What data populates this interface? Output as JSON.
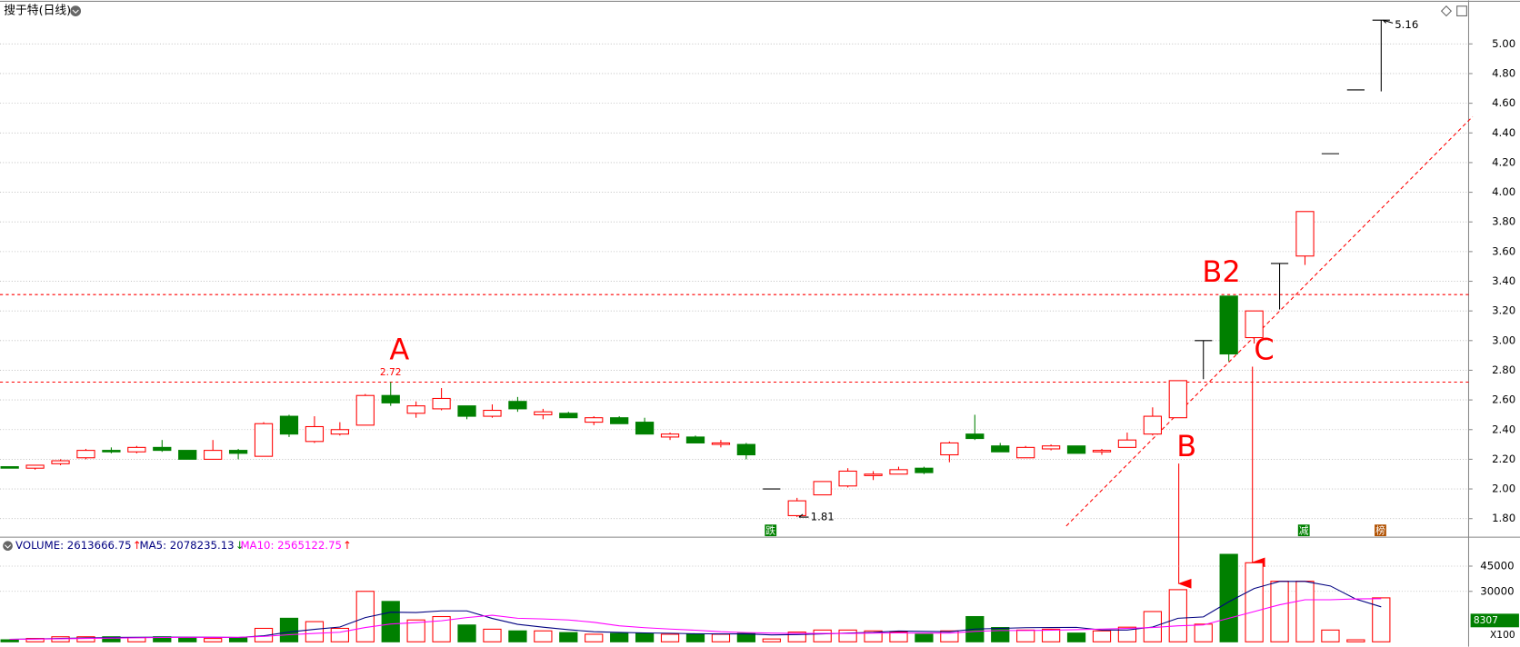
{
  "chart_data": [
    {
      "type": "candlestick",
      "title": "搜于特(日线)",
      "open": [
        2.15,
        2.14,
        2.17,
        2.21,
        2.26,
        2.25,
        2.28,
        2.26,
        2.2,
        2.26,
        2.22,
        2.49,
        2.32,
        2.37,
        2.43,
        2.63,
        2.51,
        2.54,
        2.56,
        2.49,
        2.59,
        2.5,
        2.51,
        2.45,
        2.48,
        2.45,
        2.35,
        2.35,
        2.3,
        2.3,
        2.0,
        1.82,
        1.96,
        2.02,
        2.09,
        2.1,
        2.14,
        2.23,
        2.37,
        2.29,
        2.21,
        2.27,
        2.29,
        2.25,
        2.28,
        2.37,
        2.48,
        3.0,
        3.3,
        3.02,
        3.52,
        3.57,
        4.26,
        4.69,
        5.16
      ],
      "high": [
        2.15,
        2.16,
        2.2,
        2.27,
        2.28,
        2.29,
        2.33,
        2.26,
        2.33,
        2.27,
        2.45,
        2.5,
        2.49,
        2.45,
        2.64,
        2.72,
        2.59,
        2.68,
        2.56,
        2.57,
        2.62,
        2.54,
        2.52,
        2.49,
        2.49,
        2.48,
        2.38,
        2.36,
        2.33,
        2.31,
        2.0,
        1.94,
        2.05,
        2.14,
        2.12,
        2.15,
        2.15,
        2.32,
        2.5,
        2.31,
        2.29,
        2.3,
        2.29,
        2.27,
        2.38,
        2.55,
        2.73,
        3.0,
        3.3,
        3.2,
        3.52,
        3.87,
        4.26,
        4.69,
        5.16
      ],
      "low": [
        2.14,
        2.13,
        2.16,
        2.2,
        2.24,
        2.24,
        2.25,
        2.2,
        2.2,
        2.2,
        2.22,
        2.35,
        2.31,
        2.36,
        2.43,
        2.56,
        2.48,
        2.53,
        2.47,
        2.48,
        2.52,
        2.47,
        2.48,
        2.43,
        2.44,
        2.37,
        2.33,
        2.31,
        2.28,
        2.2,
        2.0,
        1.81,
        1.96,
        2.01,
        2.06,
        2.1,
        2.1,
        2.18,
        2.33,
        2.25,
        2.21,
        2.26,
        2.24,
        2.23,
        2.28,
        2.36,
        2.48,
        2.74,
        2.86,
        2.98,
        3.21,
        3.51,
        4.26,
        4.69,
        4.68
      ],
      "close": [
        2.14,
        2.16,
        2.19,
        2.26,
        2.25,
        2.28,
        2.26,
        2.2,
        2.26,
        2.24,
        2.44,
        2.37,
        2.42,
        2.4,
        2.63,
        2.58,
        2.56,
        2.61,
        2.49,
        2.53,
        2.54,
        2.52,
        2.48,
        2.48,
        2.44,
        2.37,
        2.37,
        2.31,
        2.31,
        2.23,
        2.0,
        1.92,
        2.05,
        2.12,
        2.1,
        2.13,
        2.11,
        2.31,
        2.34,
        2.25,
        2.28,
        2.29,
        2.24,
        2.26,
        2.33,
        2.49,
        2.73,
        3.0,
        2.91,
        3.2,
        3.52,
        3.87,
        4.26,
        4.69,
        5.16
      ],
      "up_color": "#ff0000",
      "down_color": "#008000",
      "flat_color": "#000000",
      "ylim": [
        1.688,
        5.261
      ],
      "yticks": [
        {
          "value": 1.8,
          "label": "1.80"
        },
        {
          "value": 2.0,
          "label": "2.00"
        },
        {
          "value": 2.2,
          "label": "2.20"
        },
        {
          "value": 2.4,
          "label": "2.40"
        },
        {
          "value": 2.6,
          "label": "2.60"
        },
        {
          "value": 2.8,
          "label": "2.80"
        },
        {
          "value": 3.0,
          "label": "3.00"
        },
        {
          "value": 3.2,
          "label": "3.20"
        },
        {
          "value": 3.4,
          "label": "3.40"
        },
        {
          "value": 3.6,
          "label": "3.60"
        },
        {
          "value": 3.8,
          "label": "3.80"
        },
        {
          "value": 4.0,
          "label": "4.00"
        },
        {
          "value": 4.2,
          "label": "4.20"
        },
        {
          "value": 4.4,
          "label": "4.40"
        },
        {
          "value": 4.6,
          "label": "4.60"
        },
        {
          "value": 4.8,
          "label": "4.80"
        },
        {
          "value": 5.0,
          "label": "5.00"
        }
      ],
      "grid": true,
      "hlines": [
        3.31,
        2.72
      ],
      "trendline": {
        "x": [
          41.6,
          57.6
        ],
        "y": [
          1.75,
          4.51
        ]
      },
      "max_label": "5.16",
      "min_label": "1.81",
      "peak_label": "2.72",
      "annotations": [
        "A",
        "B",
        "B2",
        "C"
      ],
      "markers": [
        "跌",
        "减",
        "榜"
      ]
    },
    {
      "type": "volume",
      "legend": [
        "VOLUME: 2613666.75",
        "MA5: 2078235.13",
        "MA10: 2565122.75"
      ],
      "legend_arrows": [
        "↑",
        "↓",
        "↑"
      ],
      "values": [
        1200,
        2000,
        3000,
        3000,
        3000,
        2500,
        3000,
        2500,
        2000,
        2500,
        8000,
        14000,
        12000,
        8000,
        30000,
        24000,
        13000,
        15000,
        10000,
        7500,
        6500,
        6500,
        5500,
        4500,
        5000,
        5000,
        4500,
        4500,
        4500,
        5000,
        1700,
        5800,
        7000,
        7000,
        6500,
        5800,
        4500,
        6500,
        15000,
        8500,
        7000,
        7500,
        5200,
        6500,
        8700,
        18000,
        31000,
        10500,
        52000,
        47000,
        36000,
        36000,
        7000,
        1200,
        26137
      ],
      "series": [
        {
          "name": "MA5",
          "color": "#000080",
          "values": [
            1500,
            1700,
            2000,
            2300,
            2600,
            2700,
            2800,
            2800,
            2700,
            2600,
            3600,
            5800,
            7400,
            8800,
            14400,
            17600,
            17400,
            18400,
            18400,
            13900,
            10400,
            8700,
            7200,
            6000,
            5600,
            5300,
            5100,
            4800,
            4700,
            4700,
            4100,
            4300,
            4700,
            5200,
            5600,
            6400,
            6200,
            6000,
            7600,
            8000,
            8400,
            8500,
            8600,
            7000,
            7000,
            8800,
            14000,
            14800,
            23800,
            31700,
            35900,
            35900,
            33200,
            25400,
            20782
          ]
        },
        {
          "name": "MA10",
          "color": "#ff00ff",
          "values": [
            1500,
            1600,
            1800,
            2000,
            2200,
            2400,
            2600,
            2700,
            2700,
            2700,
            3200,
            4200,
            5000,
            5700,
            8500,
            10600,
            11400,
            12500,
            14400,
            15800,
            14000,
            13600,
            13000,
            11600,
            9500,
            8400,
            7600,
            6900,
            6000,
            5500,
            5200,
            5000,
            5000,
            5000,
            5200,
            5300,
            5200,
            5200,
            6200,
            6700,
            6700,
            6900,
            7200,
            7600,
            8000,
            8500,
            9500,
            10000,
            14000,
            18000,
            22000,
            25000,
            25000,
            25500,
            25651
          ]
        }
      ],
      "ylim": [
        0,
        53000
      ],
      "yticks": [
        30000,
        45000
      ],
      "grid": true,
      "unit": "X100",
      "cursor_value": "8307"
    }
  ]
}
